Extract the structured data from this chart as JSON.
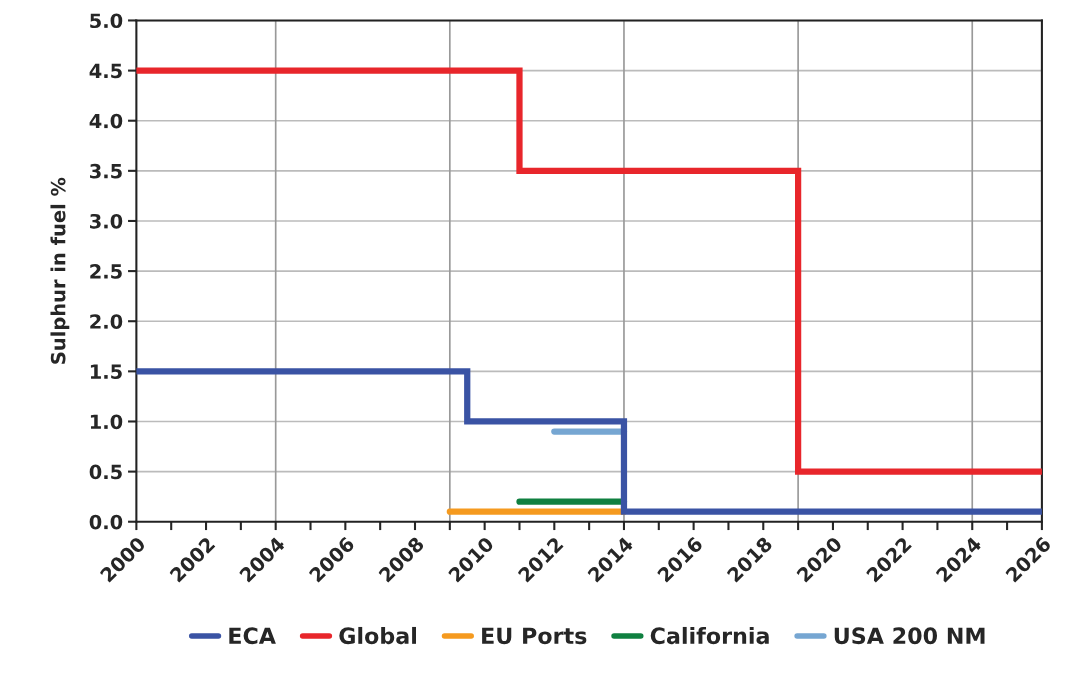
{
  "chart_data": {
    "type": "step",
    "ylabel": "Sulphur in fuel %",
    "xlim": [
      2000,
      2026
    ],
    "ylim": [
      0,
      5
    ],
    "xticks": [
      2000,
      {
        "value": 2001,
        "label": null
      },
      2002,
      {
        "value": 2003,
        "label": null
      },
      2004,
      {
        "value": 2005,
        "label": null
      },
      2006,
      {
        "value": 2007,
        "label": null
      },
      2008,
      {
        "value": 2009,
        "label": null
      },
      2010,
      {
        "value": 2011,
        "label": null
      },
      2012,
      {
        "value": 2013,
        "label": null
      },
      2014,
      {
        "value": 2015,
        "label": null
      },
      2016,
      {
        "value": 2017,
        "label": null
      },
      2018,
      {
        "value": 2019,
        "label": null
      },
      2020,
      {
        "value": 2021,
        "label": null
      },
      2022,
      {
        "value": 2023,
        "label": null
      },
      2024,
      {
        "value": 2025,
        "label": null
      },
      2026
    ],
    "yticks": [
      {
        "value": 0,
        "label": "0.0"
      },
      0.5,
      {
        "value": 1,
        "label": "1.0"
      },
      1.5,
      {
        "value": 2,
        "label": "2.0"
      },
      2.5,
      {
        "value": 3,
        "label": "3.0"
      },
      3.5,
      {
        "value": 4,
        "label": "4.0"
      },
      4.5,
      {
        "value": 5,
        "label": "5.0"
      }
    ],
    "grid": "y",
    "legend": "bottom",
    "ref_lines": [
      {
        "axis": "x",
        "value": 2004,
        "color": "#999999"
      },
      {
        "axis": "x",
        "value": 2009,
        "color": "#999999"
      },
      {
        "axis": "x",
        "value": 2014,
        "color": "#999999"
      },
      {
        "axis": "x",
        "value": 2019,
        "color": "#999999"
      },
      {
        "axis": "x",
        "value": 2024,
        "color": "#999999"
      }
    ],
    "series": [
      {
        "name": "ECA",
        "color": "#3a53a4",
        "x": [
          2000,
          2009.5,
          2014,
          2026
        ],
        "values": [
          1.5,
          1.0,
          0.1,
          0.1
        ]
      },
      {
        "name": "Global",
        "color": "#e8262b",
        "x": [
          2000,
          2011,
          2019,
          2026
        ],
        "values": [
          4.5,
          3.5,
          0.5,
          0.5
        ]
      },
      {
        "name": "EU Ports",
        "color": "#f59a1f",
        "x": [
          2009,
          2014
        ],
        "values": [
          0.1,
          0.1
        ]
      },
      {
        "name": "California",
        "color": "#0f8040",
        "x": [
          2011,
          2014
        ],
        "values": [
          0.2,
          0.2
        ]
      },
      {
        "name": "USA 200 NM",
        "color": "#76a6d2",
        "x": [
          2012,
          2014
        ],
        "values": [
          0.9,
          0.9
        ]
      }
    ]
  }
}
